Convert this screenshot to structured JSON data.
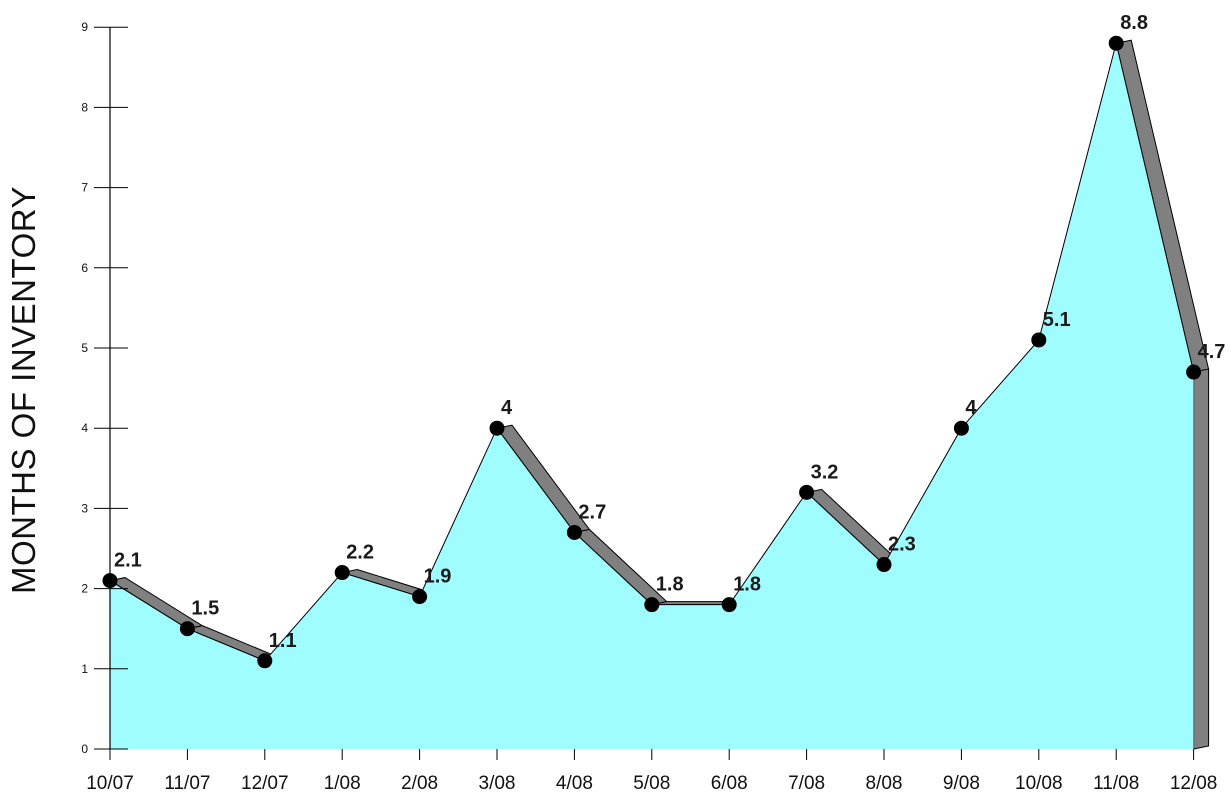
{
  "chart_data": {
    "type": "area",
    "title": "",
    "xlabel": "",
    "ylabel": "MONTHS OF INVENTORY",
    "categories": [
      "10/07",
      "11/07",
      "12/07",
      "1/08",
      "2/08",
      "3/08",
      "4/08",
      "5/08",
      "6/08",
      "7/08",
      "8/08",
      "9/08",
      "10/08",
      "11/08",
      "12/08"
    ],
    "values": [
      2.1,
      1.5,
      1.1,
      2.2,
      1.9,
      4,
      2.7,
      1.8,
      1.8,
      3.2,
      2.3,
      4,
      5.1,
      8.8,
      4.7
    ],
    "value_labels": [
      "2.1",
      "1.5",
      "1.1",
      "2.2",
      "1.9",
      "4",
      "2.7",
      "1.8",
      "1.8",
      "3.2",
      "2.3",
      "4",
      "5.1",
      "8.8",
      "4.7"
    ],
    "yticks": [
      "0",
      "1",
      "2",
      "3",
      "4",
      "5",
      "6",
      "7",
      "8",
      "9"
    ],
    "ylim": [
      0,
      9
    ],
    "grid": false,
    "legend": "none",
    "colors": {
      "fill": "#9ffdff",
      "shade": "#808080",
      "line": "#000000",
      "marker": "#000000"
    }
  }
}
